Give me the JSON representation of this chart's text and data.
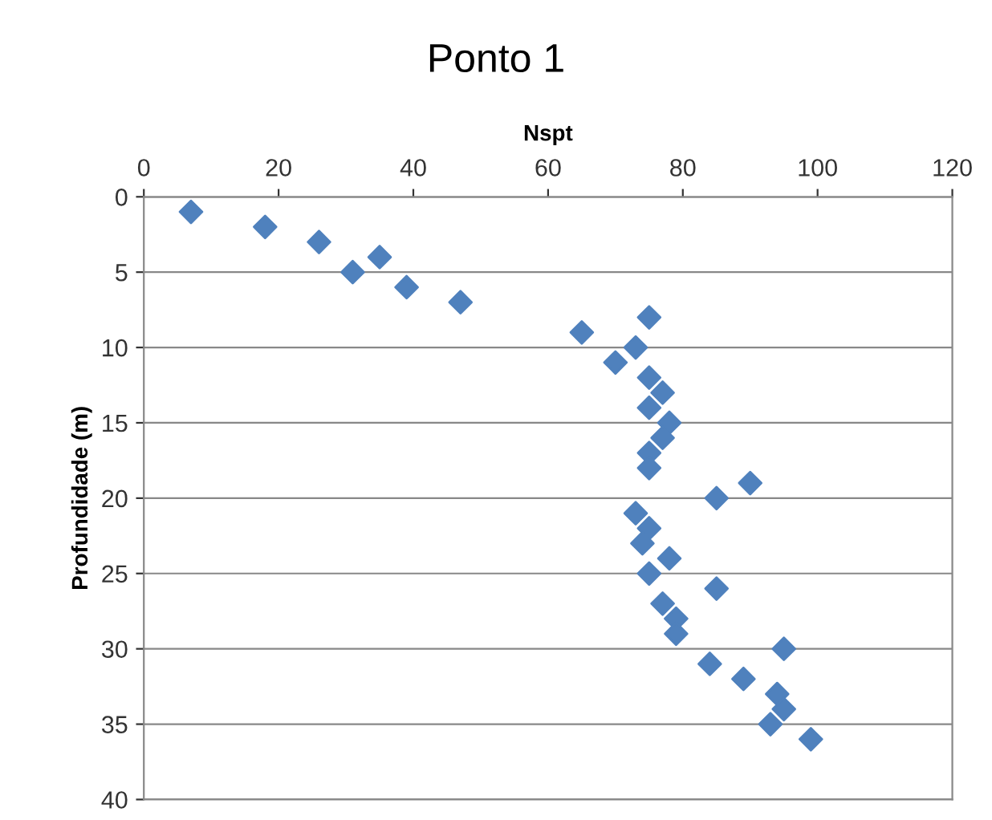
{
  "chart_data": {
    "type": "scatter",
    "title": "Ponto 1",
    "xlabel": "Nspt",
    "ylabel": "Profundidade (m)",
    "x": [
      7,
      18,
      26,
      35,
      31,
      39,
      47,
      75,
      65,
      73,
      70,
      75,
      77,
      75,
      78,
      77,
      75,
      75,
      90,
      85,
      73,
      75,
      74,
      78,
      75,
      85,
      77,
      79,
      79,
      95,
      84,
      89,
      94,
      95,
      93,
      99
    ],
    "series": [
      {
        "color": "#4f81bd",
        "values": [
          1,
          2,
          3,
          4,
          5,
          6,
          7,
          8,
          9,
          10,
          11,
          12,
          13,
          14,
          15,
          16,
          17,
          18,
          19,
          20,
          21,
          22,
          23,
          24,
          25,
          26,
          27,
          28,
          29,
          30,
          31,
          32,
          33,
          34,
          35,
          36
        ]
      }
    ],
    "xlim": [
      0,
      120
    ],
    "xticks": [
      0,
      20,
      40,
      60,
      80,
      100,
      120
    ],
    "ylim": [
      40,
      0
    ],
    "yticks": [
      0,
      5,
      10,
      15,
      20,
      25,
      30,
      35,
      40
    ],
    "grid": "y",
    "marker": "diamond",
    "legend": false
  }
}
